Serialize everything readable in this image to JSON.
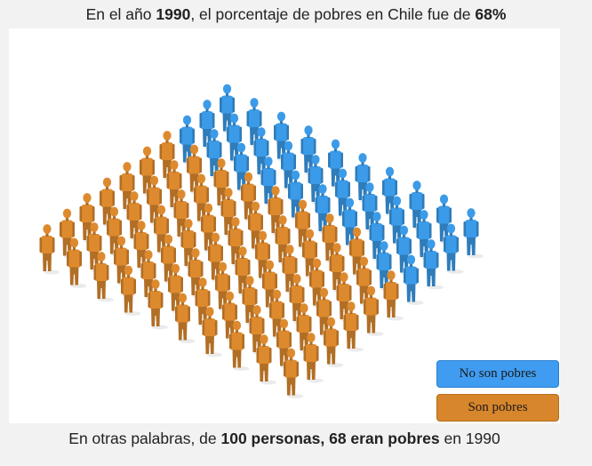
{
  "title": {
    "part1": "En el año ",
    "year": "1990",
    "part2": ", el porcentaje de pobres en Chile fue de ",
    "percent": "68%"
  },
  "figure": {
    "rows": 10,
    "columns": 10,
    "poor_count": 68,
    "not_poor_count": 32,
    "colors": {
      "poor": "#dd8a2e",
      "not_poor": "#3b9be8"
    }
  },
  "legend": {
    "not_poor": "No son pobres",
    "poor": "Son pobres"
  },
  "caption": {
    "part1": "En otras palabras, de ",
    "bold1": "100 personas, 68 eran pobres",
    "part2": " en 1990"
  }
}
